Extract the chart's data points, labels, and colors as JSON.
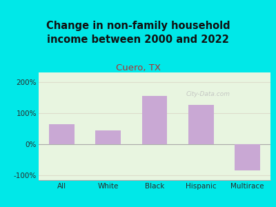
{
  "title": "Change in non-family household\nincome between 2000 and 2022",
  "subtitle": "Cuero, TX",
  "categories": [
    "All",
    "White",
    "Black",
    "Hispanic",
    "Multirace"
  ],
  "values": [
    65,
    45,
    155,
    125,
    -85
  ],
  "bar_color": "#c9a8d4",
  "title_fontsize": 10.5,
  "subtitle_fontsize": 9.5,
  "subtitle_color": "#b03030",
  "title_color": "#111111",
  "background_outer": "#00e8e8",
  "background_plot_top": "#e8f5e0",
  "background_plot_bottom": "#f5fff5",
  "ylim": [
    -115,
    230
  ],
  "yticks": [
    -100,
    0,
    100,
    200
  ],
  "ytick_labels": [
    "-100%",
    "0%",
    "100%",
    "200%"
  ],
  "grid_color": "#ddddcc",
  "watermark": "City-Data.com"
}
